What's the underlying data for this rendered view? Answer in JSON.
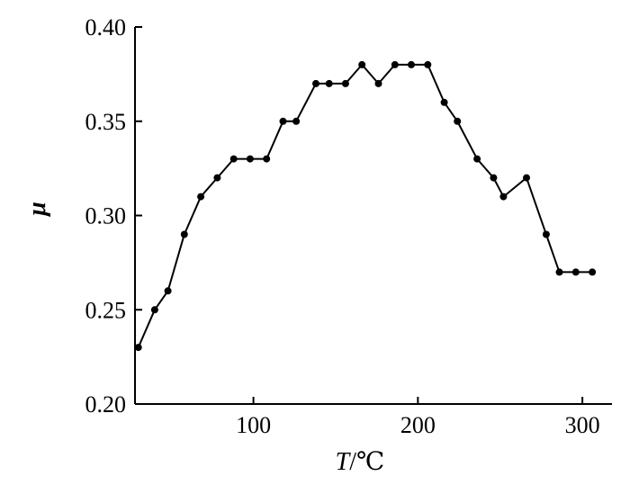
{
  "chart_data": {
    "type": "line",
    "title": "",
    "xlabel_var": "T",
    "xlabel_unit": "/℃",
    "ylabel": "μ",
    "xlim": [
      28,
      318
    ],
    "ylim": [
      0.2,
      0.4
    ],
    "xticks": [
      100,
      200,
      300
    ],
    "yticks": [
      0.2,
      0.25,
      0.3,
      0.35,
      0.4
    ],
    "ytick_labels": [
      "0.20",
      "0.25",
      "0.30",
      "0.35",
      "0.40"
    ],
    "grid": false,
    "marker": "circle",
    "color": "#000000",
    "series": [
      {
        "x": [
          30,
          40,
          48,
          58,
          68,
          78,
          88,
          98,
          108,
          118,
          126,
          138,
          146,
          156,
          166,
          176,
          186,
          196,
          206,
          216,
          224,
          236,
          246,
          252,
          266,
          278,
          286,
          296,
          306
        ],
        "y": [
          0.23,
          0.25,
          0.26,
          0.29,
          0.31,
          0.32,
          0.33,
          0.33,
          0.33,
          0.35,
          0.35,
          0.37,
          0.37,
          0.37,
          0.38,
          0.37,
          0.38,
          0.38,
          0.38,
          0.36,
          0.35,
          0.33,
          0.32,
          0.31,
          0.32,
          0.29,
          0.27,
          0.27,
          0.27
        ]
      }
    ]
  }
}
